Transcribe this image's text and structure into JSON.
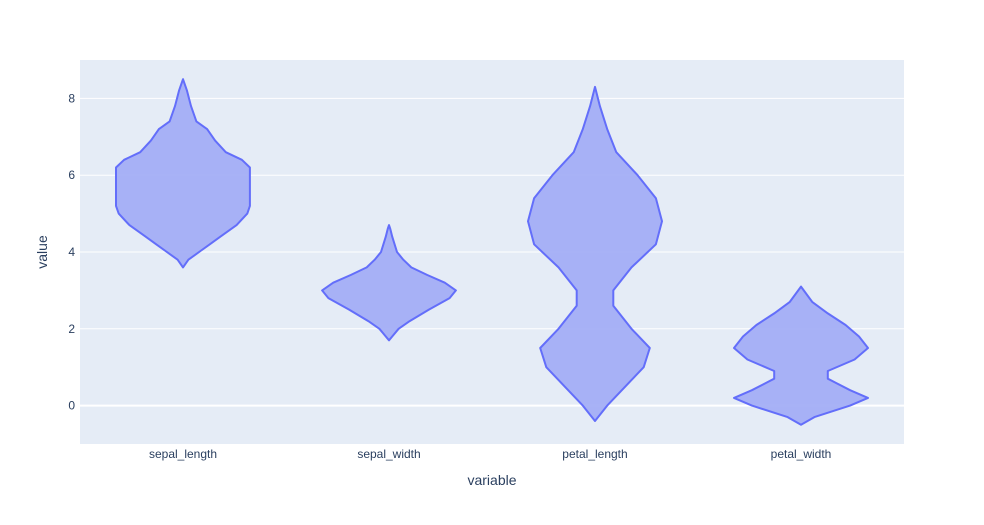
{
  "chart_data": {
    "type": "violin",
    "xlabel": "variable",
    "ylabel": "value",
    "ylim": [
      -1,
      9
    ],
    "yticks": [
      0,
      2,
      4,
      6,
      8
    ],
    "grid": true,
    "colors": {
      "plot_bg": "#e5ecf6",
      "grid": "#ffffff",
      "fill": "#a3aef5",
      "line": "#636efa",
      "text": "#2a3f5f"
    },
    "categories": [
      "sepal_length",
      "sepal_width",
      "petal_length",
      "petal_width"
    ],
    "violins": [
      {
        "category": "sepal_length",
        "profile": [
          [
            3.6,
            0
          ],
          [
            3.8,
            0.02
          ],
          [
            4.0,
            0.06
          ],
          [
            4.2,
            0.1
          ],
          [
            4.4,
            0.14
          ],
          [
            4.7,
            0.2
          ],
          [
            5.0,
            0.24
          ],
          [
            5.2,
            0.25
          ],
          [
            5.6,
            0.25
          ],
          [
            6.0,
            0.25
          ],
          [
            6.2,
            0.25
          ],
          [
            6.4,
            0.22
          ],
          [
            6.6,
            0.16
          ],
          [
            6.9,
            0.12
          ],
          [
            7.2,
            0.09
          ],
          [
            7.4,
            0.05
          ],
          [
            7.8,
            0.03
          ],
          [
            8.2,
            0.015
          ],
          [
            8.5,
            0
          ]
        ]
      },
      {
        "category": "sepal_width",
        "profile": [
          [
            1.7,
            0
          ],
          [
            1.8,
            0.02
          ],
          [
            2.0,
            0.06
          ],
          [
            2.2,
            0.13
          ],
          [
            2.5,
            0.25
          ],
          [
            2.8,
            0.38
          ],
          [
            3.0,
            0.42
          ],
          [
            3.2,
            0.35
          ],
          [
            3.4,
            0.24
          ],
          [
            3.6,
            0.14
          ],
          [
            3.8,
            0.09
          ],
          [
            4.0,
            0.05
          ],
          [
            4.2,
            0.035
          ],
          [
            4.4,
            0.02
          ],
          [
            4.6,
            0.008
          ],
          [
            4.7,
            0
          ]
        ]
      },
      {
        "category": "petal_length",
        "profile": [
          [
            -0.4,
            0
          ],
          [
            0,
            0.02
          ],
          [
            0.5,
            0.05
          ],
          [
            1.0,
            0.08
          ],
          [
            1.5,
            0.09
          ],
          [
            2.0,
            0.06
          ],
          [
            2.6,
            0.03
          ],
          [
            3.0,
            0.03
          ],
          [
            3.6,
            0.06
          ],
          [
            4.2,
            0.1
          ],
          [
            4.8,
            0.11
          ],
          [
            5.4,
            0.1
          ],
          [
            6.0,
            0.07
          ],
          [
            6.6,
            0.035
          ],
          [
            7.2,
            0.02
          ],
          [
            7.8,
            0.008
          ],
          [
            8.3,
            0
          ]
        ]
      },
      {
        "category": "petal_width",
        "profile": [
          [
            -0.5,
            0
          ],
          [
            -0.3,
            0.03
          ],
          [
            0,
            0.11
          ],
          [
            0.2,
            0.15
          ],
          [
            0.4,
            0.11
          ],
          [
            0.7,
            0.06
          ],
          [
            0.9,
            0.06
          ],
          [
            1.2,
            0.12
          ],
          [
            1.5,
            0.15
          ],
          [
            1.8,
            0.13
          ],
          [
            2.1,
            0.1
          ],
          [
            2.4,
            0.06
          ],
          [
            2.7,
            0.025
          ],
          [
            3.1,
            0
          ]
        ]
      }
    ]
  }
}
